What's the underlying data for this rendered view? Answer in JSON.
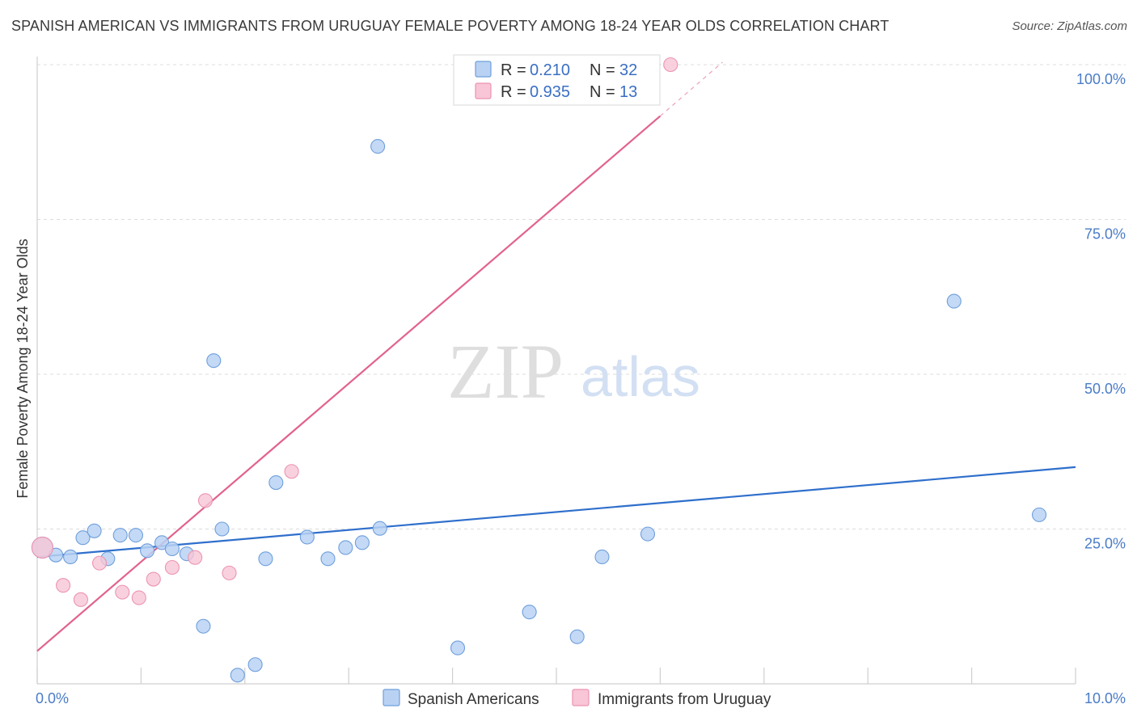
{
  "title": "SPANISH AMERICAN VS IMMIGRANTS FROM URUGUAY FEMALE POVERTY AMONG 18-24 YEAR OLDS CORRELATION CHART",
  "source": "Source: ZipAtlas.com",
  "watermark": {
    "part1": "ZIP",
    "part2": "atlas"
  },
  "colors": {
    "blue_fill": "#b9d2f3",
    "blue_stroke": "#6f9fdc",
    "blue_line": "#2f6fcc",
    "pink_fill": "#f8c6d6",
    "pink_stroke": "#ec94b1",
    "pink_line": "#e2628c",
    "tick_text": "#4a7cc7",
    "grid": "#dcdcdc"
  },
  "legend": {
    "r_label": "R =",
    "n_label": "N =",
    "rows": [
      {
        "series": "Spanish Americans",
        "r": "0.210",
        "n": "32"
      },
      {
        "series": "Immigrants from Uruguay",
        "r": "0.935",
        "n": "13"
      }
    ]
  },
  "chart_data": {
    "type": "scatter",
    "title": "SPANISH AMERICAN VS IMMIGRANTS FROM URUGUAY FEMALE POVERTY AMONG 18-24 YEAR OLDS CORRELATION CHART",
    "xlabel": "",
    "ylabel": "Female Poverty Among 18-24 Year Olds",
    "xlim": [
      0,
      10
    ],
    "ylim": [
      0,
      100
    ],
    "x_tick_labels": [
      "0.0%",
      "10.0%"
    ],
    "y_tick_values": [
      25,
      50,
      75,
      100
    ],
    "y_tick_labels": [
      "25.0%",
      "50.0%",
      "75.0%",
      "100.0%"
    ],
    "series": [
      {
        "name": "Spanish Americans",
        "points": [
          [
            0.05,
            22.0
          ],
          [
            0.18,
            20.8
          ],
          [
            0.32,
            20.5
          ],
          [
            0.44,
            23.6
          ],
          [
            0.55,
            24.7
          ],
          [
            0.68,
            20.2
          ],
          [
            0.8,
            24.0
          ],
          [
            0.95,
            24.0
          ],
          [
            1.06,
            21.5
          ],
          [
            1.2,
            22.8
          ],
          [
            1.3,
            21.8
          ],
          [
            1.44,
            21.0
          ],
          [
            1.6,
            9.3
          ],
          [
            1.7,
            52.2
          ],
          [
            1.78,
            25.0
          ],
          [
            1.93,
            1.4
          ],
          [
            2.1,
            3.1
          ],
          [
            2.2,
            20.2
          ],
          [
            2.3,
            32.5
          ],
          [
            2.6,
            23.7
          ],
          [
            2.8,
            20.2
          ],
          [
            2.97,
            22.0
          ],
          [
            3.13,
            22.8
          ],
          [
            3.3,
            25.1
          ],
          [
            3.28,
            86.8
          ],
          [
            4.05,
            5.8
          ],
          [
            4.74,
            11.6
          ],
          [
            5.2,
            7.6
          ],
          [
            5.44,
            20.5
          ],
          [
            5.88,
            24.2
          ],
          [
            8.83,
            61.8
          ],
          [
            9.65,
            27.3
          ]
        ],
        "trend": {
          "x": [
            0,
            10
          ],
          "y": [
            20.5,
            35.0
          ]
        }
      },
      {
        "name": "Immigrants from Uruguay",
        "points": [
          [
            0.05,
            22.0
          ],
          [
            0.25,
            15.9
          ],
          [
            0.42,
            13.6
          ],
          [
            0.6,
            19.5
          ],
          [
            0.82,
            14.8
          ],
          [
            0.98,
            13.9
          ],
          [
            1.12,
            16.9
          ],
          [
            1.3,
            18.8
          ],
          [
            1.52,
            20.4
          ],
          [
            1.62,
            29.6
          ],
          [
            1.85,
            17.9
          ],
          [
            2.45,
            34.3
          ],
          [
            6.1,
            100.0
          ]
        ],
        "trend": {
          "x": [
            0,
            6.0
          ],
          "y": [
            5.3,
            91.7
          ]
        },
        "trend_extension": {
          "x": [
            6.0,
            6.6
          ],
          "y": [
            91.7,
            100.4
          ]
        }
      }
    ]
  }
}
